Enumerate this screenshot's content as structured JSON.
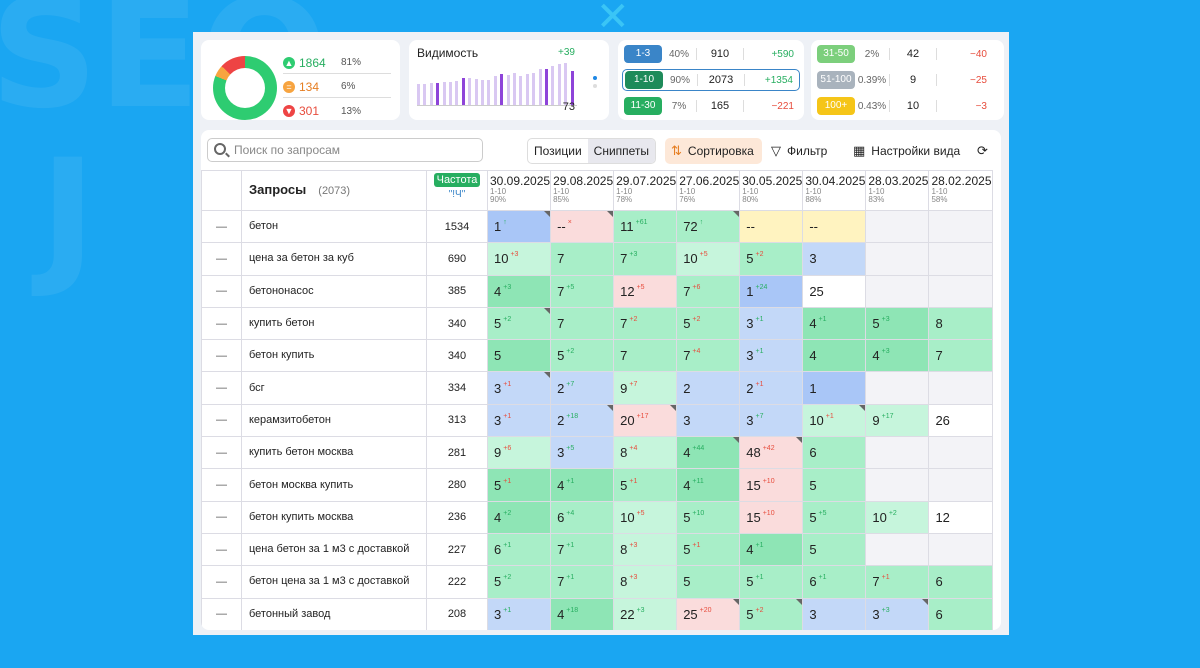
{
  "summary": {
    "top": {
      "count": "1864",
      "pct": "81%"
    },
    "mid": {
      "count": "134",
      "pct": "6%"
    },
    "down": {
      "count": "301",
      "pct": "13%"
    },
    "colors": {
      "up": "#2ecc71",
      "mid": "#f7a440",
      "down": "#ee4444"
    }
  },
  "visibility": {
    "title": "Видимость",
    "delta": "+39",
    "value": "73",
    "bars": [
      40,
      40,
      42,
      42,
      45,
      45,
      46,
      52,
      52,
      50,
      48,
      48,
      55,
      60,
      58,
      62,
      55,
      60,
      62,
      70,
      70,
      75,
      78,
      80,
      65
    ],
    "dark": [
      3,
      7,
      13,
      20,
      24
    ]
  },
  "ranges": {
    "left": [
      {
        "label": "1-3",
        "pct": "40%",
        "count": "910",
        "delta": "+590",
        "color": "#3a85c8",
        "sign": "pos"
      },
      {
        "label": "1-10",
        "pct": "90%",
        "count": "2073",
        "delta": "+1354",
        "color": "#1e8b5a",
        "sign": "pos",
        "selected": true
      },
      {
        "label": "11-30",
        "pct": "7%",
        "count": "165",
        "delta": "−221",
        "color": "#27ae60",
        "sign": "neg"
      }
    ],
    "right": [
      {
        "label": "31-50",
        "pct": "2%",
        "count": "42",
        "delta": "−40",
        "color": "#7ccf7c",
        "sign": "neg"
      },
      {
        "label": "51-100",
        "pct": "0.39%",
        "count": "9",
        "delta": "−25",
        "color": "#a9b3bd",
        "sign": "neg"
      },
      {
        "label": "100+",
        "pct": "0.43%",
        "count": "10",
        "delta": "−3",
        "color": "#f5c518",
        "sign": "neg"
      }
    ]
  },
  "toolbar": {
    "search_placeholder": "Поиск по запросам",
    "tab_positions": "Позиции",
    "tab_snippets": "Сниппеты",
    "sort": "Сортировка",
    "filter": "Фильтр",
    "view_settings": "Настройки вида"
  },
  "table": {
    "header_queries": "Запросы",
    "header_count": "(2073)",
    "header_freq": "Частота",
    "header_freq_sub": "\"!Ч\"",
    "dates": [
      {
        "d": "30.09.2025",
        "r": "1-10",
        "p": "90%"
      },
      {
        "d": "29.08.2025",
        "r": "1-10",
        "p": "85%"
      },
      {
        "d": "29.07.2025",
        "r": "1-10",
        "p": "78%"
      },
      {
        "d": "27.06.2025",
        "r": "1-10",
        "p": "76%"
      },
      {
        "d": "30.05.2025",
        "r": "1-10",
        "p": "80%"
      },
      {
        "d": "30.04.2025",
        "r": "1-10",
        "p": "88%"
      },
      {
        "d": "28.03.2025",
        "r": "1-10",
        "p": "83%"
      },
      {
        "d": "28.02.2025",
        "r": "1-10",
        "p": "58%"
      }
    ],
    "rows": [
      {
        "q": "бетон",
        "f": "1534",
        "c": [
          [
            "1",
            "↑",
            "pos",
            "cbd",
            1
          ],
          [
            "--",
            "×",
            "neg",
            "cr",
            1
          ],
          [
            "11",
            "+61",
            "pos",
            "cg",
            0
          ],
          [
            "72",
            "↑",
            "pos",
            "cg",
            1
          ],
          [
            "--",
            "",
            "",
            "cy",
            0
          ],
          [
            "--",
            "",
            "",
            "cy",
            0
          ],
          [
            "",
            "",
            "",
            "cgr",
            0
          ],
          [
            "",
            "",
            "",
            "cgr",
            0
          ]
        ]
      },
      {
        "q": "цена за бетон за куб",
        "f": "690",
        "c": [
          [
            "10",
            "+3",
            "neg",
            "clg",
            0
          ],
          [
            "7",
            "",
            "",
            "cg",
            0
          ],
          [
            "7",
            "+3",
            "pos",
            "cg",
            0
          ],
          [
            "10",
            "+5",
            "neg",
            "clg",
            0
          ],
          [
            "5",
            "+2",
            "neg",
            "cg",
            0
          ],
          [
            "3",
            "",
            "",
            "cb",
            0
          ],
          [
            "",
            "",
            "",
            "cgr",
            0
          ],
          [
            "",
            "",
            "",
            "cgr",
            0
          ]
        ]
      },
      {
        "q": "бетононасос",
        "f": "385",
        "c": [
          [
            "4",
            "+3",
            "pos",
            "cgd",
            0
          ],
          [
            "7",
            "+5",
            "pos",
            "cg",
            0
          ],
          [
            "12",
            "+5",
            "neg",
            "cr",
            0
          ],
          [
            "7",
            "+6",
            "neg",
            "cg",
            0
          ],
          [
            "1",
            "+24",
            "pos",
            "cbd",
            0
          ],
          [
            "25",
            "",
            "",
            "cw",
            0
          ],
          [
            "",
            "",
            "",
            "cgr",
            0
          ],
          [
            "",
            "",
            "",
            "cgr",
            0
          ]
        ]
      },
      {
        "q": "купить бетон",
        "f": "340",
        "c": [
          [
            "5",
            "+2",
            "pos",
            "cg",
            1
          ],
          [
            "7",
            "",
            "",
            "cg",
            0
          ],
          [
            "7",
            "+2",
            "neg",
            "cg",
            0
          ],
          [
            "5",
            "+2",
            "neg",
            "cg",
            0
          ],
          [
            "3",
            "+1",
            "pos",
            "cb",
            0
          ],
          [
            "4",
            "+1",
            "pos",
            "cgd",
            0
          ],
          [
            "5",
            "+3",
            "pos",
            "cgd",
            0
          ],
          [
            "8",
            "",
            "",
            "cg",
            0
          ]
        ]
      },
      {
        "q": "бетон купить",
        "f": "340",
        "c": [
          [
            "5",
            "",
            "",
            "cgd",
            0
          ],
          [
            "5",
            "+2",
            "pos",
            "cg",
            0
          ],
          [
            "7",
            "",
            "",
            "cg",
            0
          ],
          [
            "7",
            "+4",
            "neg",
            "cg",
            0
          ],
          [
            "3",
            "+1",
            "pos",
            "cb",
            0
          ],
          [
            "4",
            "",
            "",
            "cgd",
            0
          ],
          [
            "4",
            "+3",
            "pos",
            "cgd",
            0
          ],
          [
            "7",
            "",
            "",
            "cg",
            0
          ]
        ]
      },
      {
        "q": "бсг",
        "f": "334",
        "c": [
          [
            "3",
            "+1",
            "neg",
            "cb",
            1
          ],
          [
            "2",
            "+7",
            "pos",
            "cb",
            0
          ],
          [
            "9",
            "+7",
            "neg",
            "clg",
            0
          ],
          [
            "2",
            "",
            "",
            "cb",
            0
          ],
          [
            "2",
            "+1",
            "neg",
            "cb",
            0
          ],
          [
            "1",
            "",
            "",
            "cbd",
            0
          ],
          [
            "",
            "",
            "",
            "cgr",
            0
          ],
          [
            "",
            "",
            "",
            "cgr",
            0
          ]
        ]
      },
      {
        "q": "керамзитобетон",
        "f": "313",
        "c": [
          [
            "3",
            "+1",
            "neg",
            "cb",
            0
          ],
          [
            "2",
            "+18",
            "pos",
            "cb",
            1
          ],
          [
            "20",
            "+17",
            "neg",
            "cr",
            1
          ],
          [
            "3",
            "",
            "",
            "cb",
            0
          ],
          [
            "3",
            "+7",
            "pos",
            "cb",
            0
          ],
          [
            "10",
            "+1",
            "neg",
            "clg",
            1
          ],
          [
            "9",
            "+17",
            "pos",
            "clg",
            0
          ],
          [
            "26",
            "",
            "",
            "cw",
            0
          ]
        ]
      },
      {
        "q": "купить бетон москва",
        "f": "281",
        "c": [
          [
            "9",
            "+6",
            "neg",
            "clg",
            0
          ],
          [
            "3",
            "+5",
            "pos",
            "cb",
            0
          ],
          [
            "8",
            "+4",
            "neg",
            "clg",
            0
          ],
          [
            "4",
            "+44",
            "pos",
            "cgd",
            1
          ],
          [
            "48",
            "+42",
            "neg",
            "cr",
            1
          ],
          [
            "6",
            "",
            "",
            "cg",
            0
          ],
          [
            "",
            "",
            "",
            "cgr",
            0
          ],
          [
            "",
            "",
            "",
            "cgr",
            0
          ]
        ]
      },
      {
        "q": "бетон москва купить",
        "f": "280",
        "c": [
          [
            "5",
            "+1",
            "neg",
            "cgd",
            0
          ],
          [
            "4",
            "+1",
            "pos",
            "cgd",
            0
          ],
          [
            "5",
            "+1",
            "neg",
            "cg",
            0
          ],
          [
            "4",
            "+11",
            "pos",
            "cgd",
            0
          ],
          [
            "15",
            "+10",
            "neg",
            "cr",
            0
          ],
          [
            "5",
            "",
            "",
            "cg",
            0
          ],
          [
            "",
            "",
            "",
            "cgr",
            0
          ],
          [
            "",
            "",
            "",
            "cgr",
            0
          ]
        ]
      },
      {
        "q": "бетон купить москва",
        "f": "236",
        "c": [
          [
            "4",
            "+2",
            "pos",
            "cgd",
            0
          ],
          [
            "6",
            "+4",
            "pos",
            "cg",
            0
          ],
          [
            "10",
            "+5",
            "neg",
            "clg",
            0
          ],
          [
            "5",
            "+10",
            "pos",
            "cg",
            0
          ],
          [
            "15",
            "+10",
            "neg",
            "cr",
            0
          ],
          [
            "5",
            "+5",
            "pos",
            "cg",
            0
          ],
          [
            "10",
            "+2",
            "pos",
            "clg",
            0
          ],
          [
            "12",
            "",
            "",
            "cw",
            0
          ]
        ]
      },
      {
        "q": "цена бетон за 1 м3 с доставкой",
        "f": "227",
        "c": [
          [
            "6",
            "+1",
            "pos",
            "cg",
            0
          ],
          [
            "7",
            "+1",
            "pos",
            "cg",
            0
          ],
          [
            "8",
            "+3",
            "neg",
            "clg",
            0
          ],
          [
            "5",
            "+1",
            "neg",
            "cg",
            0
          ],
          [
            "4",
            "+1",
            "pos",
            "cgd",
            0
          ],
          [
            "5",
            "",
            "",
            "cg",
            0
          ],
          [
            "",
            "",
            "",
            "cgr",
            0
          ],
          [
            "",
            "",
            "",
            "cgr",
            0
          ]
        ]
      },
      {
        "q": "бетон цена за 1 м3 с доставкой",
        "f": "222",
        "c": [
          [
            "5",
            "+2",
            "pos",
            "cg",
            0
          ],
          [
            "7",
            "+1",
            "pos",
            "cg",
            0
          ],
          [
            "8",
            "+3",
            "neg",
            "clg",
            0
          ],
          [
            "5",
            "",
            "",
            "cg",
            0
          ],
          [
            "5",
            "+1",
            "pos",
            "cg",
            0
          ],
          [
            "6",
            "+1",
            "pos",
            "cg",
            0
          ],
          [
            "7",
            "+1",
            "neg",
            "cg",
            0
          ],
          [
            "6",
            "",
            "",
            "cg",
            0
          ]
        ]
      },
      {
        "q": "бетонный завод",
        "f": "208",
        "c": [
          [
            "3",
            "+1",
            "pos",
            "cb",
            0
          ],
          [
            "4",
            "+18",
            "pos",
            "cgd",
            0
          ],
          [
            "22",
            "+3",
            "pos",
            "clg",
            0
          ],
          [
            "25",
            "+20",
            "neg",
            "cr",
            1
          ],
          [
            "5",
            "+2",
            "neg",
            "cg",
            1
          ],
          [
            "3",
            "",
            "",
            "cb",
            0
          ],
          [
            "3",
            "+3",
            "pos",
            "cb",
            1
          ],
          [
            "6",
            "",
            "",
            "cg",
            0
          ]
        ]
      }
    ]
  }
}
